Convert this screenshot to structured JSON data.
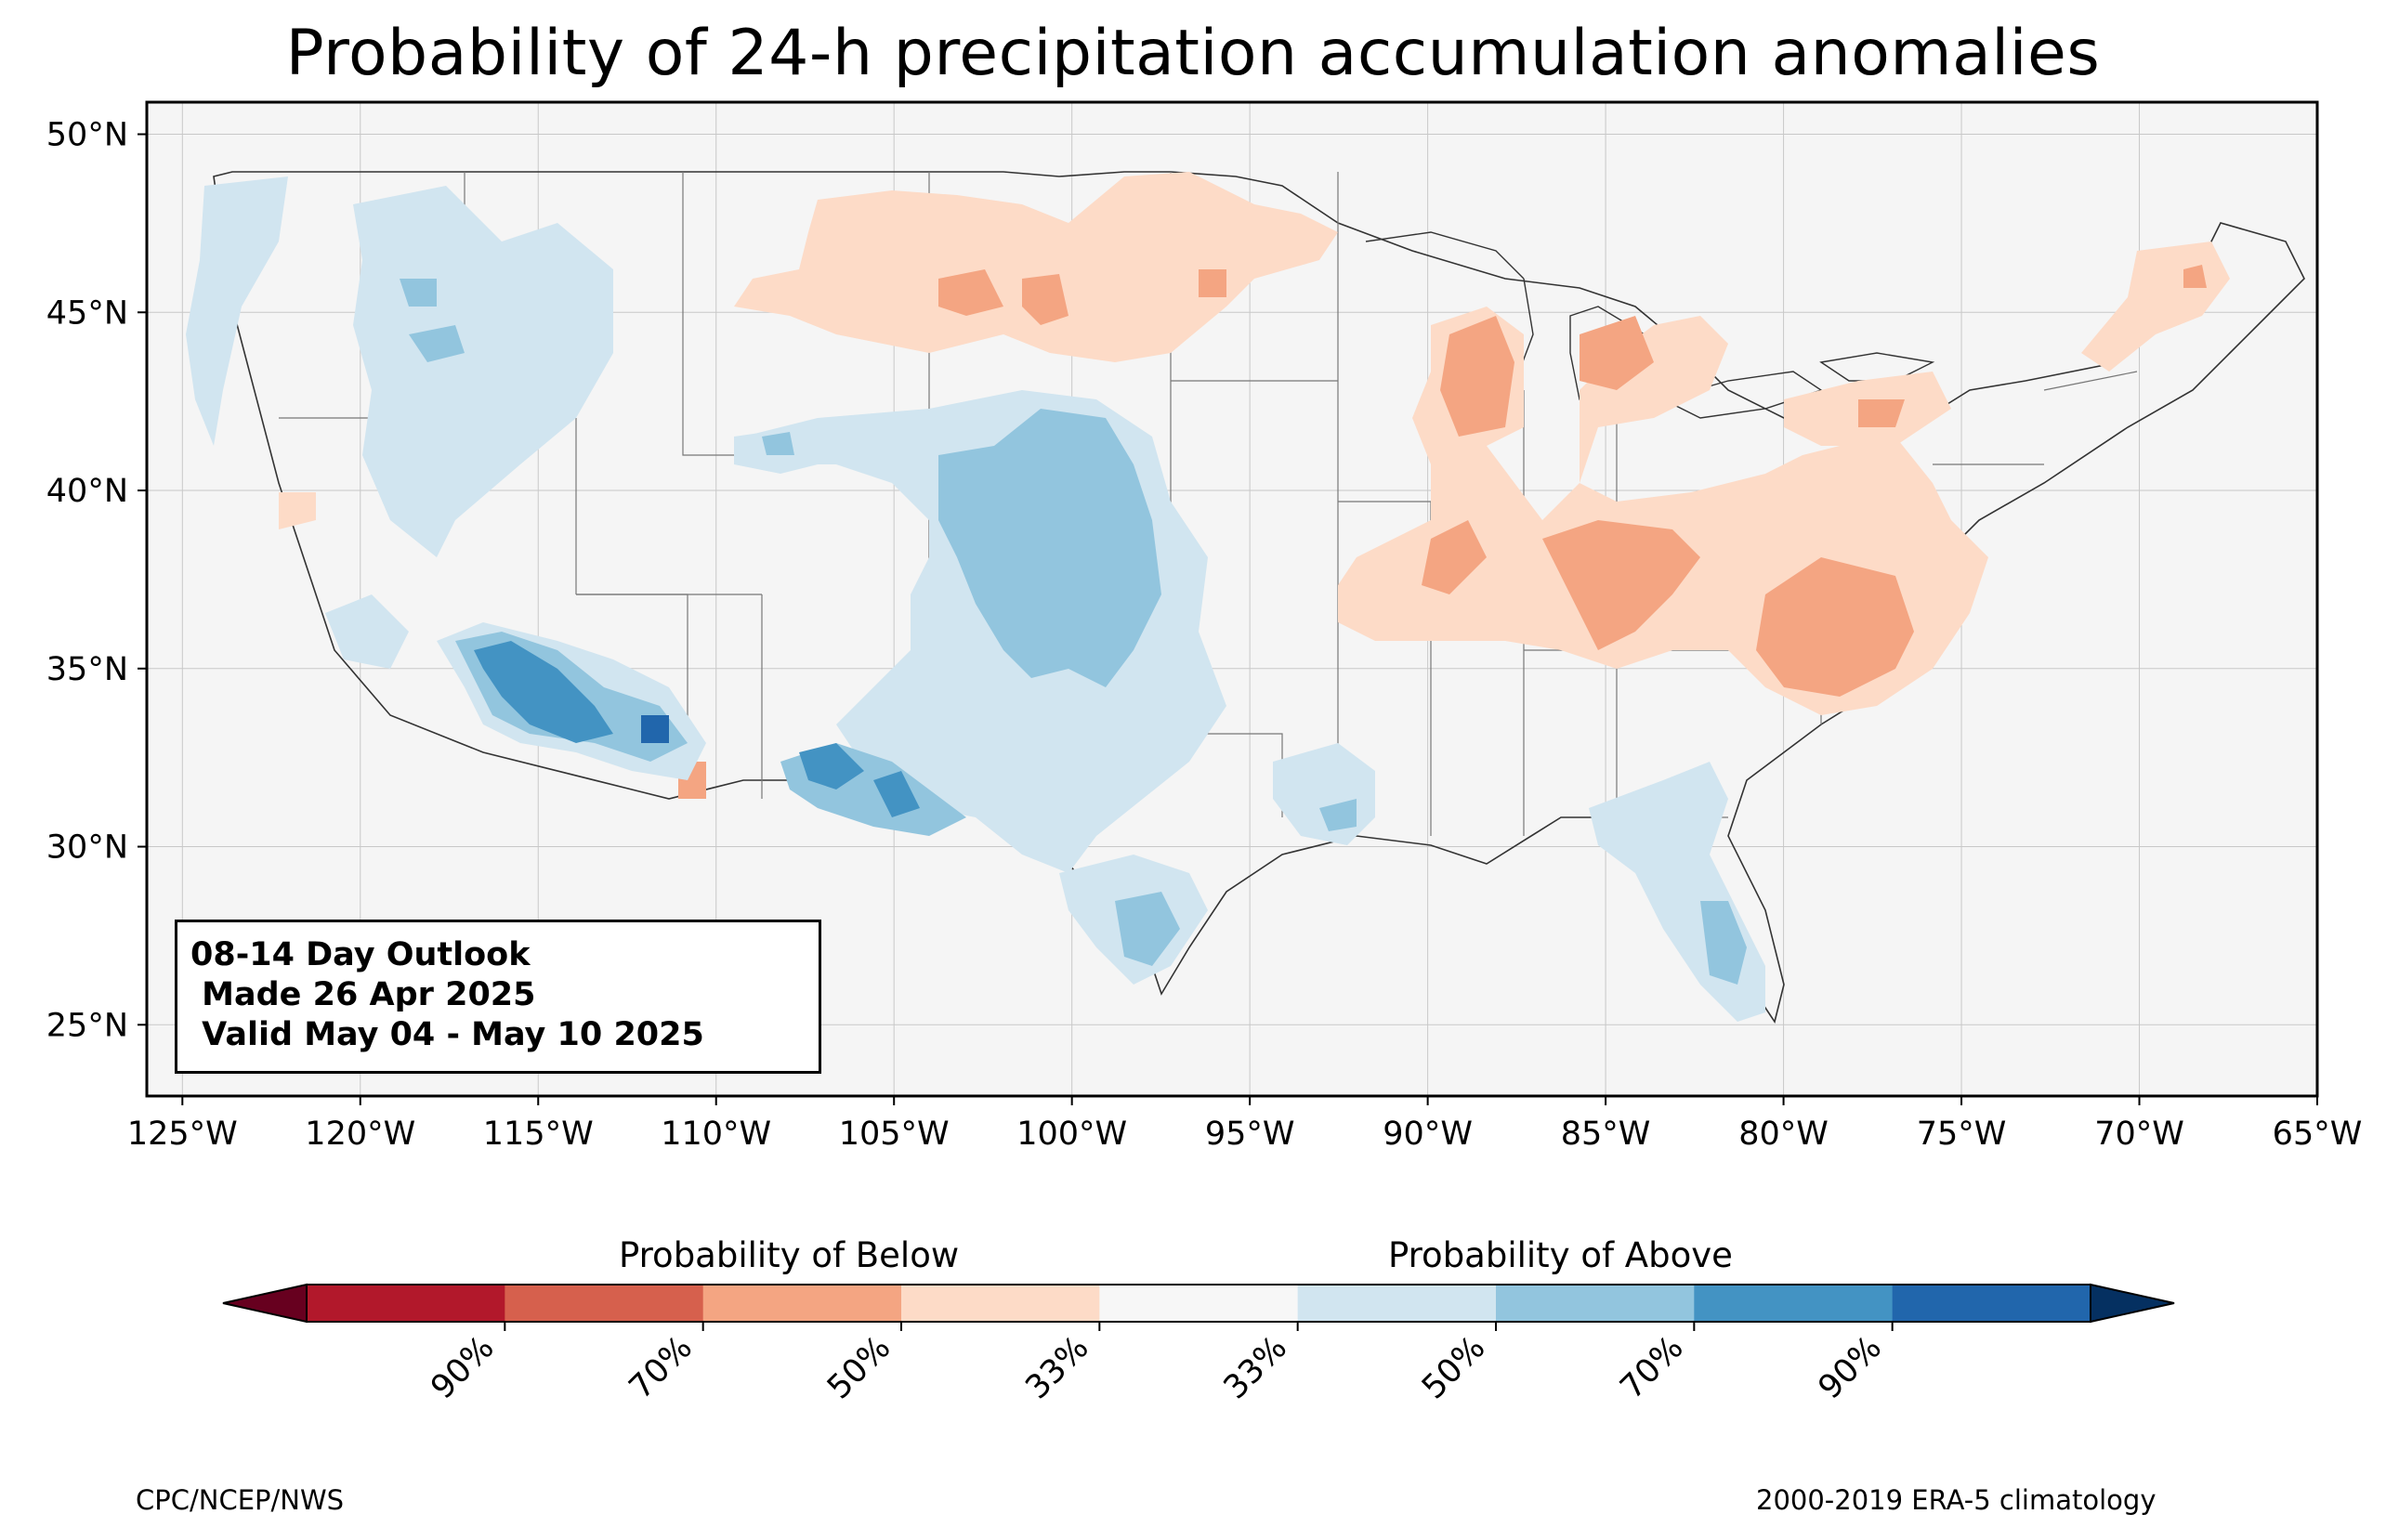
{
  "title": "Probability of 24-h precipitation accumulation anomalies",
  "map": {
    "region": "Contiguous United States",
    "lat_ticks": [
      {
        "value": 50,
        "label": "50°N"
      },
      {
        "value": 45,
        "label": "45°N"
      },
      {
        "value": 40,
        "label": "40°N"
      },
      {
        "value": 35,
        "label": "35°N"
      },
      {
        "value": 30,
        "label": "30°N"
      },
      {
        "value": 25,
        "label": "25°N"
      }
    ],
    "lon_ticks": [
      {
        "value": -125,
        "label": "125°W"
      },
      {
        "value": -120,
        "label": "120°W"
      },
      {
        "value": -115,
        "label": "115°W"
      },
      {
        "value": -110,
        "label": "110°W"
      },
      {
        "value": -105,
        "label": "105°W"
      },
      {
        "value": -100,
        "label": "100°W"
      },
      {
        "value": -95,
        "label": "95°W"
      },
      {
        "value": -90,
        "label": "90°W"
      },
      {
        "value": -85,
        "label": "85°W"
      },
      {
        "value": -80,
        "label": "80°W"
      },
      {
        "value": -75,
        "label": "75°W"
      },
      {
        "value": -70,
        "label": "70°W"
      },
      {
        "value": -65,
        "label": "65°W"
      }
    ],
    "background_color": "#f5f5f5",
    "grid": true
  },
  "outlook_box": {
    "line1": "08-14 Day Outlook",
    "line2": " Made 26 Apr 2025",
    "line3": " Valid May 04 - May 10 2025"
  },
  "colorbar": {
    "label_below": "Probability of Below",
    "label_above": "Probability of Above",
    "bins": [
      {
        "color": "#67001f"
      },
      {
        "color": "#b2182b"
      },
      {
        "color": "#d6604d"
      },
      {
        "color": "#f4a582"
      },
      {
        "color": "#fddbc7"
      },
      {
        "color": "#f7f7f7"
      },
      {
        "color": "#d1e5f0"
      },
      {
        "color": "#92c5de"
      },
      {
        "color": "#4393c3"
      },
      {
        "color": "#2166ac"
      },
      {
        "color": "#053061"
      }
    ],
    "tick_labels": [
      "90%",
      "70%",
      "50%",
      "33%",
      "33%",
      "50%",
      "70%",
      "90%"
    ]
  },
  "footer_left": "CPC/NCEP/NWS",
  "footer_right": "2000-2019 ERA-5 climatology"
}
